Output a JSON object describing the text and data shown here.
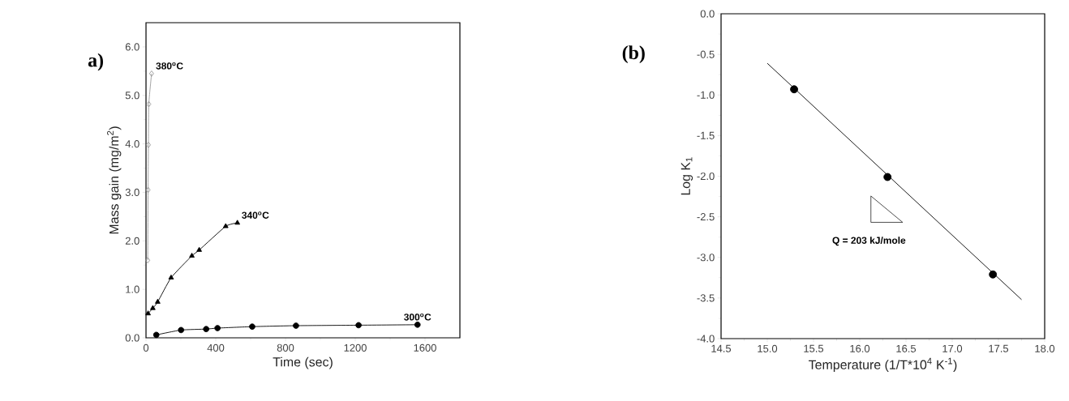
{
  "chart_data": [
    {
      "type": "line",
      "title": "a)",
      "xlabel": "Time  (sec)",
      "ylabel": "Mass gain  (mg/m$^{2}$)",
      "xlim": [
        0,
        1800
      ],
      "ylim": [
        0,
        6.5
      ],
      "xticks": [
        0,
        400,
        800,
        1200,
        1600
      ],
      "yticks": [
        {
          "value": 0,
          "label": "0.0"
        },
        {
          "value": 1,
          "label": "1.0"
        },
        {
          "value": 2,
          "label": "2.0"
        },
        {
          "value": 3,
          "label": "3.0"
        },
        {
          "value": 4,
          "label": "4.0"
        },
        {
          "value": 5,
          "label": "5.0"
        },
        {
          "value": 6,
          "label": "6.0"
        }
      ],
      "series": [
        {
          "name": "380$^{o}$C",
          "color": "#999999",
          "marker": "diamond",
          "x": [
            10,
            12,
            14,
            16,
            32
          ],
          "values": [
            1.6,
            3.05,
            3.98,
            4.82,
            5.45
          ]
        },
        {
          "name": "340$^{o}$C",
          "color": "#000000",
          "marker": "triangle",
          "x": [
            12,
            39,
            67,
            144,
            263,
            305,
            457,
            524
          ],
          "values": [
            0.5,
            0.61,
            0.74,
            1.24,
            1.69,
            1.81,
            2.3,
            2.37
          ]
        },
        {
          "name": "300$^{o}$C",
          "color": "#000000",
          "marker": "circle",
          "x": [
            59,
            201,
            345,
            410,
            609,
            860,
            1219,
            1557
          ],
          "values": [
            0.06,
            0.16,
            0.18,
            0.2,
            0.23,
            0.25,
            0.26,
            0.27
          ]
        }
      ]
    },
    {
      "type": "scatter",
      "title": "(b)",
      "xlabel": "Temperature  (1/T*10$^{4}$ K$^{-1}$)",
      "ylabel": "Log K$_{1}$",
      "xlim": [
        14.5,
        18.0
      ],
      "ylim": [
        -4.0,
        0.0
      ],
      "xticks": [
        14.5,
        {
          "value": 15,
          "label": "15.0"
        },
        15.5,
        {
          "value": 16,
          "label": "16.0"
        },
        16.5,
        {
          "value": 17,
          "label": "17.0"
        },
        17.5,
        {
          "value": 18,
          "label": "18.0"
        }
      ],
      "yticks": [
        {
          "value": -4,
          "label": "-4.0"
        },
        -3.5,
        {
          "value": -3,
          "label": "-3.0"
        },
        -2.5,
        {
          "value": -2,
          "label": "-2.0"
        },
        -1.5,
        {
          "value": -1,
          "label": "-1.0"
        },
        -0.5,
        {
          "value": 0,
          "label": "0.0"
        }
      ],
      "annotations": [
        "Q = 203 kJ/mole"
      ],
      "series": [
        {
          "type": "scatter",
          "color": "#000000",
          "marker": "circle",
          "x": [
            15.29,
            16.3,
            17.44
          ],
          "values": [
            -0.93,
            -2.01,
            -3.21
          ]
        },
        {
          "type": "line",
          "color": "#000000",
          "marker": "none",
          "x": [
            15.0,
            17.75
          ],
          "values": [
            -0.61,
            -3.52
          ]
        }
      ]
    }
  ]
}
